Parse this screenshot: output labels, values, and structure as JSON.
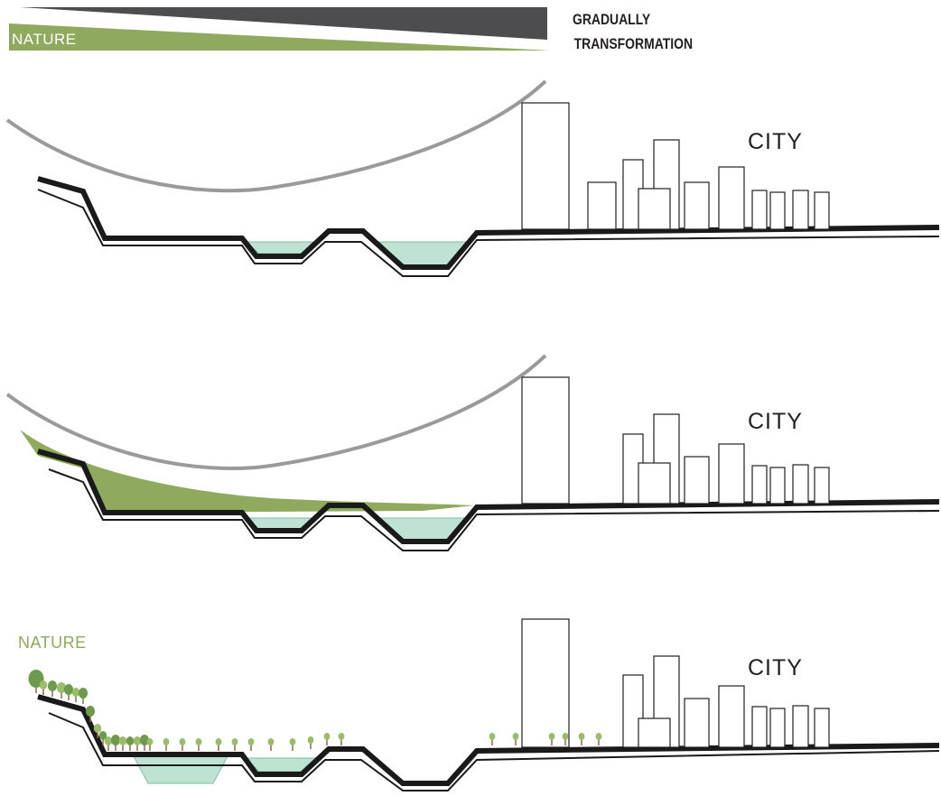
{
  "header": {
    "nature_label": "NATURE",
    "transformation_line1": "GRADUALLY",
    "transformation_line2": "TRANSFORMATION"
  },
  "sections": [
    {
      "city_label": "CITY"
    },
    {
      "city_label": "CITY"
    },
    {
      "city_label": "CITY",
      "nature_label": "NATURE"
    }
  ],
  "colors": {
    "ground": "#1a1a1a",
    "water": "#bfe3d2",
    "water_stroke": "#7fbfa2",
    "vegetation": "#8faa5e",
    "tree": "#9cbc6d",
    "trunk": "#8b6a4f",
    "arc": "#9a9a9a",
    "dark_wedge": "#4d4d4f"
  }
}
